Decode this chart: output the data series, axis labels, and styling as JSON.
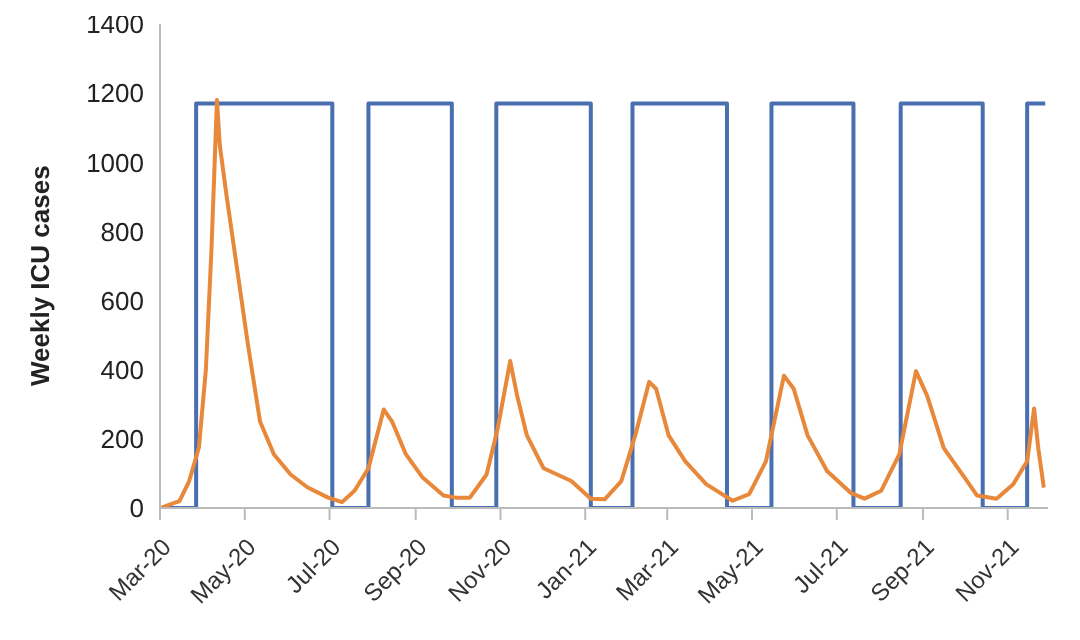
{
  "chart_data": {
    "type": "line",
    "ylabel": "Weekly ICU cases",
    "xlim": [
      "2020-03-01",
      "2021-11-30"
    ],
    "xticks": [
      {
        "value": "2020-03-01",
        "label": "Mar-20"
      },
      {
        "value": "2020-05-01",
        "label": "May-20"
      },
      {
        "value": "2020-07-01",
        "label": "Jul-20"
      },
      {
        "value": "2020-09-01",
        "label": "Sep-20"
      },
      {
        "value": "2020-11-01",
        "label": "Nov-20"
      },
      {
        "value": "2021-01-01",
        "label": "Jan-21"
      },
      {
        "value": "2021-03-01",
        "label": "Mar-21"
      },
      {
        "value": "2021-05-01",
        "label": "May-21"
      },
      {
        "value": "2021-07-01",
        "label": "Jul-21"
      },
      {
        "value": "2021-09-01",
        "label": "Sep-21"
      },
      {
        "value": "2021-11-01",
        "label": "Nov-21"
      }
    ],
    "ylim": [
      0,
      1400
    ],
    "yticks": [
      0,
      200,
      400,
      600,
      800,
      1000,
      1200,
      1400
    ],
    "grid": false,
    "legend": false,
    "series": [
      {
        "type": "step",
        "color": "#4a6fb0",
        "x": [
          "2020-03-01",
          "2020-03-27",
          "2020-07-03",
          "2020-07-29",
          "2020-09-27",
          "2020-10-29",
          "2021-01-05",
          "2021-02-04",
          "2021-04-13",
          "2021-05-15",
          "2021-07-13",
          "2021-08-16",
          "2021-10-14",
          "2021-11-15",
          "2021-11-28"
        ],
        "values": [
          0,
          1170,
          0,
          1170,
          0,
          1170,
          0,
          1170,
          0,
          1170,
          0,
          1170,
          0,
          1170,
          1170
        ]
      },
      {
        "color": "#e8883a",
        "x": [
          "2020-03-01",
          "2020-03-15",
          "2020-03-22",
          "2020-03-29",
          "2020-04-03",
          "2020-04-07",
          "2020-04-11",
          "2020-04-13",
          "2020-04-18",
          "2020-04-25",
          "2020-05-03",
          "2020-05-12",
          "2020-05-22",
          "2020-06-03",
          "2020-06-15",
          "2020-06-30",
          "2020-07-10",
          "2020-07-19",
          "2020-07-29",
          "2020-08-09",
          "2020-08-15",
          "2020-08-25",
          "2020-09-06",
          "2020-09-21",
          "2020-09-30",
          "2020-10-10",
          "2020-10-22",
          "2020-10-30",
          "2020-11-08",
          "2020-11-13",
          "2020-11-20",
          "2020-12-02",
          "2020-12-22",
          "2021-01-05",
          "2021-01-15",
          "2021-01-27",
          "2021-02-06",
          "2021-02-16",
          "2021-02-21",
          "2021-03-02",
          "2021-03-14",
          "2021-03-29",
          "2021-04-17",
          "2021-04-29",
          "2021-05-11",
          "2021-05-24",
          "2021-05-31",
          "2021-06-10",
          "2021-06-24",
          "2021-07-11",
          "2021-07-21",
          "2021-08-02",
          "2021-08-15",
          "2021-08-27",
          "2021-09-04",
          "2021-09-16",
          "2021-10-01",
          "2021-10-10",
          "2021-10-24",
          "2021-11-05",
          "2021-11-15",
          "2021-11-20",
          "2021-11-23",
          "2021-11-27"
        ],
        "values": [
          0,
          20,
          78,
          175,
          400,
          745,
          1180,
          1050,
          900,
          705,
          480,
          250,
          155,
          97,
          60,
          30,
          17,
          50,
          115,
          285,
          250,
          155,
          88,
          36,
          30,
          30,
          97,
          230,
          425,
          325,
          210,
          115,
          78,
          27,
          25,
          78,
          210,
          365,
          345,
          210,
          135,
          69,
          21,
          40,
          135,
          383,
          345,
          210,
          107,
          44,
          27,
          50,
          155,
          396,
          325,
          173,
          88,
          36,
          27,
          69,
          135,
          288,
          173,
          59
        ]
      }
    ]
  }
}
